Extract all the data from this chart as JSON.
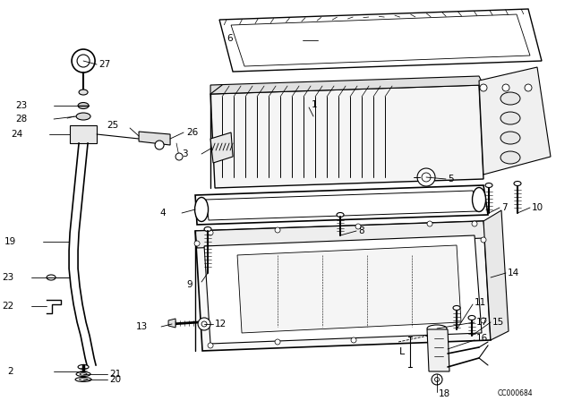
{
  "background_color": "#ffffff",
  "line_color": "#000000",
  "diagram_code": "CC000684",
  "label_fontsize": 7.5,
  "label_color": "#000000"
}
